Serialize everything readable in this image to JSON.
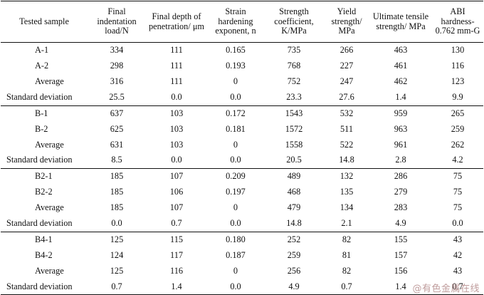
{
  "headers": [
    "Tested sample",
    "Final indentation load/N",
    "Final depth of penetration/ μm",
    "Strain hardening exponent, n",
    "Strength coefficient, K/MPa",
    "Yield strength/ MPa",
    "Ultimate tensile strength/ MPa",
    "ABI hardness- 0.762 mm-G"
  ],
  "groups": [
    {
      "rows": [
        [
          "A-1",
          "334",
          "111",
          "0.165",
          "735",
          "266",
          "463",
          "130"
        ],
        [
          "A-2",
          "298",
          "111",
          "0.193",
          "768",
          "227",
          "461",
          "116"
        ],
        [
          "Average",
          "316",
          "111",
          "0",
          "752",
          "247",
          "462",
          "123"
        ],
        [
          "Standard deviation",
          "25.5",
          "0.0",
          "0.0",
          "23.3",
          "27.6",
          "1.4",
          "9.9"
        ]
      ]
    },
    {
      "rows": [
        [
          "B-1",
          "637",
          "103",
          "0.172",
          "1543",
          "532",
          "959",
          "265"
        ],
        [
          "B-2",
          "625",
          "103",
          "0.181",
          "1572",
          "511",
          "963",
          "259"
        ],
        [
          "Average",
          "631",
          "103",
          "0",
          "1558",
          "522",
          "961",
          "262"
        ],
        [
          "Standard deviation",
          "8.5",
          "0.0",
          "0.0",
          "20.5",
          "14.8",
          "2.8",
          "4.2"
        ]
      ]
    },
    {
      "rows": [
        [
          "B2-1",
          "185",
          "107",
          "0.209",
          "489",
          "132",
          "286",
          "75"
        ],
        [
          "B2-2",
          "185",
          "106",
          "0.197",
          "468",
          "135",
          "279",
          "75"
        ],
        [
          "Average",
          "185",
          "107",
          "0",
          "479",
          "134",
          "283",
          "75"
        ],
        [
          "Standard deviation",
          "0.0",
          "0.7",
          "0.0",
          "14.8",
          "2.1",
          "4.9",
          "0.0"
        ]
      ]
    },
    {
      "rows": [
        [
          "B4-1",
          "125",
          "115",
          "0.180",
          "252",
          "82",
          "155",
          "43"
        ],
        [
          "B4-2",
          "124",
          "117",
          "0.187",
          "259",
          "81",
          "157",
          "42"
        ],
        [
          "Average",
          "125",
          "116",
          "0",
          "256",
          "82",
          "156",
          "43"
        ],
        [
          "Standard deviation",
          "0.7",
          "1.4",
          "0.0",
          "4.9",
          "0.7",
          "1.4",
          "0.7"
        ]
      ]
    }
  ],
  "watermark": "@有色金属在线"
}
